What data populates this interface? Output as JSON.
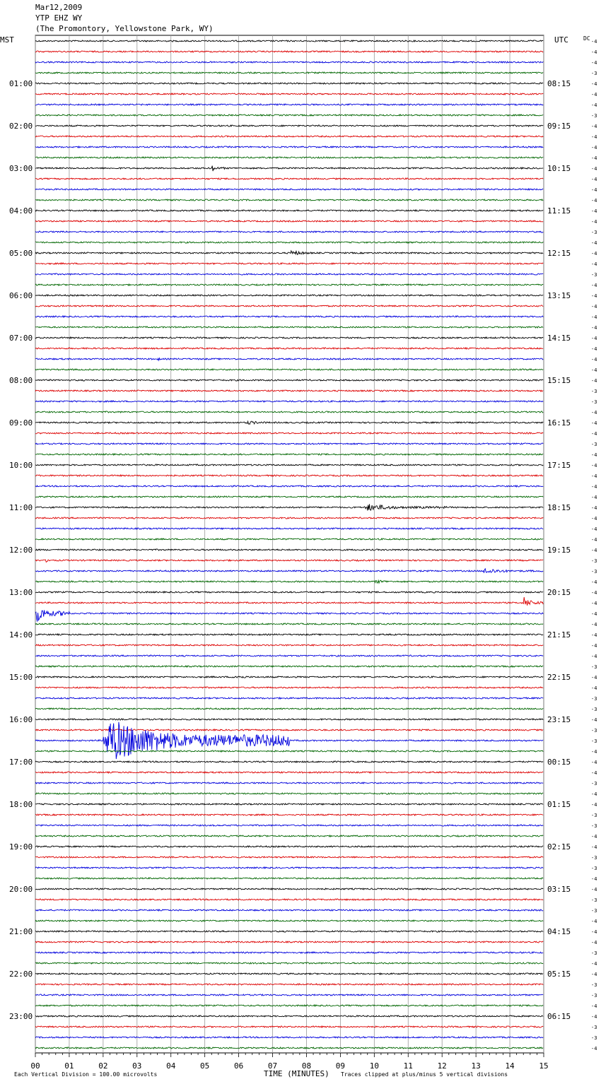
{
  "header": {
    "date": "Mar12,2009",
    "station": "YTP EHZ WY",
    "location": "(The Promontory, Yellowstone Park, WY)"
  },
  "left_axis_label": "MST",
  "right_axis_label": "UTC",
  "dc_label": "DC",
  "chart_data": {
    "type": "line",
    "title": "Mar12,2009 YTP EHZ WY (The Promontory, Yellowstone Park, WY)",
    "xlabel": "TIME (MINUTES)",
    "xlim": [
      0,
      15
    ],
    "x_ticks": [
      "00",
      "01",
      "02",
      "03",
      "04",
      "05",
      "06",
      "07",
      "08",
      "09",
      "10",
      "11",
      "12",
      "13",
      "14",
      "15"
    ],
    "rows_per_hour": 4,
    "row_count": 96,
    "trace_colors": [
      "#000000",
      "#dd0000",
      "#0000dd",
      "#006600"
    ],
    "left_hour_labels": [
      "01:00",
      "02:00",
      "03:00",
      "04:00",
      "05:00",
      "06:00",
      "07:00",
      "08:00",
      "09:00",
      "10:00",
      "11:00",
      "12:00",
      "13:00",
      "14:00",
      "15:00",
      "16:00",
      "17:00",
      "18:00",
      "19:00",
      "20:00",
      "21:00",
      "22:00",
      "23:00"
    ],
    "right_hour_labels": [
      "08:15",
      "09:15",
      "10:15",
      "11:15",
      "12:15",
      "13:15",
      "14:15",
      "15:15",
      "16:15",
      "17:15",
      "18:15",
      "19:15",
      "20:15",
      "21:15",
      "22:15",
      "23:15",
      "00:15",
      "01:15",
      "02:15",
      "03:15",
      "04:15",
      "05:15",
      "06:15"
    ],
    "dc_offsets": [
      "-4",
      "-4",
      "-4",
      "-3",
      "-4",
      "-4",
      "-4",
      "-3",
      "-4",
      "-4",
      "-4",
      "-4",
      "-4",
      "-4",
      "-4",
      "-4",
      "-4",
      "-4",
      "-3",
      "-4",
      "-4",
      "-4",
      "-3",
      "-4",
      "-4",
      "-4",
      "-4",
      "-4",
      "-4",
      "-4",
      "-4",
      "-4",
      "-4",
      "-3",
      "-3",
      "-4",
      "-4",
      "-4",
      "-3",
      "-4",
      "-4",
      "-4",
      "-4",
      "-4",
      "-4",
      "-4",
      "-4",
      "-4",
      "-4",
      "-3",
      "-3",
      "-4",
      "-4",
      "-4",
      "-4",
      "-4",
      "-4",
      "-4",
      "-4",
      "-3",
      "-4",
      "-4",
      "-3",
      "-3",
      "-4",
      "-3",
      "-3",
      "-4",
      "-4",
      "-4",
      "-3",
      "-4",
      "-4",
      "-3",
      "-3",
      "-4",
      "-4",
      "-3",
      "-3",
      "-4",
      "-4",
      "-3",
      "-3",
      "-4",
      "-4",
      "-4",
      "-3",
      "-4",
      "-4",
      "-3",
      "-3",
      "-4",
      "-4",
      "-3",
      "-3",
      "-4"
    ],
    "events": [
      {
        "row": 12,
        "start_min": 5.2,
        "end_min": 5.6,
        "amp": 6
      },
      {
        "row": 20,
        "start_min": 7.5,
        "end_min": 9.0,
        "amp": 4
      },
      {
        "row": 30,
        "start_min": 3.6,
        "end_min": 3.8,
        "amp": 4
      },
      {
        "row": 36,
        "start_min": 6.2,
        "end_min": 8.0,
        "amp": 3
      },
      {
        "row": 44,
        "start_min": 9.7,
        "end_min": 12.2,
        "amp": 6
      },
      {
        "row": 49,
        "start_min": 0.3,
        "end_min": 1.0,
        "amp": 3
      },
      {
        "row": 50,
        "start_min": 13.2,
        "end_min": 15.0,
        "amp": 5
      },
      {
        "row": 51,
        "start_min": 10.0,
        "end_min": 11.5,
        "amp": 3
      },
      {
        "row": 53,
        "start_min": 14.4,
        "end_min": 15.0,
        "amp": 10
      },
      {
        "row": 54,
        "start_min": 0.0,
        "end_min": 1.0,
        "amp": 14
      },
      {
        "row": 60,
        "start_min": 5.8,
        "end_min": 7.5,
        "amp": 3
      },
      {
        "row": 66,
        "start_min": 2.0,
        "end_min": 7.5,
        "amp": 34
      }
    ],
    "footer_left": "Each Vertical Division =  100.00 microvolts",
    "footer_right": "Traces clipped at plus/minus 5 vertical divisions"
  }
}
